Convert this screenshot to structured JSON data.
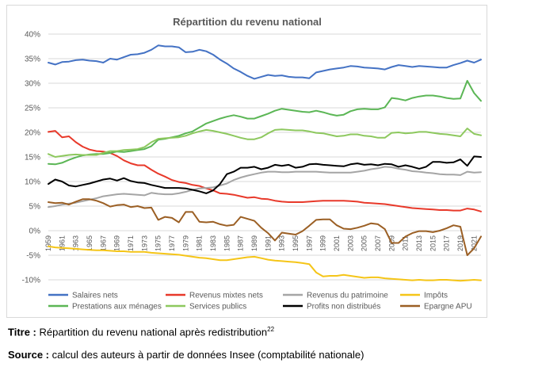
{
  "chart_data": {
    "type": "line",
    "title": "Répartition du revenu national",
    "xlabel": "",
    "ylabel": "",
    "ylim": [
      -10,
      40
    ],
    "y_ticks": [
      -10,
      -5,
      0,
      5,
      10,
      15,
      20,
      25,
      30,
      35,
      40
    ],
    "y_tick_labels": [
      "-10%",
      "-5%",
      "0%",
      "5%",
      "10%",
      "15%",
      "20%",
      "25%",
      "30%",
      "35%",
      "40%"
    ],
    "x": [
      1959,
      1960,
      1961,
      1962,
      1963,
      1964,
      1965,
      1966,
      1967,
      1968,
      1969,
      1970,
      1971,
      1972,
      1973,
      1974,
      1975,
      1976,
      1977,
      1978,
      1979,
      1980,
      1981,
      1982,
      1983,
      1984,
      1985,
      1986,
      1987,
      1988,
      1989,
      1990,
      1991,
      1992,
      1993,
      1994,
      1995,
      1996,
      1997,
      1998,
      1999,
      2000,
      2001,
      2002,
      2003,
      2004,
      2005,
      2006,
      2007,
      2008,
      2009,
      2010,
      2011,
      2012,
      2013,
      2014,
      2015,
      2016,
      2017,
      2018,
      2019,
      2020,
      2021,
      2022
    ],
    "x_tick_labels": [
      "1959",
      "1961",
      "1963",
      "1965",
      "1967",
      "1969",
      "1971",
      "1973",
      "1975",
      "1977",
      "1979",
      "1981",
      "1983",
      "1985",
      "1987",
      "1989",
      "1991",
      "1993",
      "1995",
      "1997",
      "1999",
      "2001",
      "2003",
      "2005",
      "2007",
      "2009",
      "2011",
      "2013",
      "2015",
      "2017",
      "2019",
      "2021"
    ],
    "legend_position": "bottom",
    "series": [
      {
        "name": "Salaires nets",
        "color": "#4472C4",
        "values": [
          34.2,
          33.8,
          34.3,
          34.4,
          34.7,
          34.8,
          34.6,
          34.5,
          34.2,
          35.0,
          34.8,
          35.3,
          35.8,
          35.9,
          36.2,
          36.8,
          37.7,
          37.5,
          37.5,
          37.3,
          36.3,
          36.4,
          36.8,
          36.5,
          35.8,
          34.8,
          34.0,
          33.0,
          32.3,
          31.5,
          30.9,
          31.3,
          31.7,
          31.5,
          31.6,
          31.3,
          31.2,
          31.2,
          31.0,
          32.2,
          32.5,
          32.8,
          33.0,
          33.2,
          33.5,
          33.4,
          33.2,
          33.1,
          33.0,
          32.8,
          33.3,
          33.7,
          33.5,
          33.3,
          33.5,
          33.4,
          33.3,
          33.2,
          33.2,
          33.7,
          34.1,
          34.6,
          34.2,
          34.8
        ]
      },
      {
        "name": "Revenus mixtes nets",
        "color": "#E8392A",
        "values": [
          20.1,
          20.3,
          19.0,
          19.2,
          18.0,
          17.1,
          16.5,
          16.2,
          16.1,
          15.8,
          15.2,
          14.3,
          13.7,
          13.3,
          13.3,
          12.4,
          11.6,
          11.0,
          10.3,
          9.9,
          9.7,
          9.3,
          9.1,
          8.6,
          8.2,
          7.6,
          7.5,
          7.3,
          7.0,
          6.7,
          6.8,
          6.5,
          6.4,
          6.1,
          5.9,
          5.8,
          5.8,
          5.8,
          5.9,
          6.0,
          6.1,
          6.1,
          6.1,
          6.1,
          6.0,
          5.9,
          5.7,
          5.6,
          5.5,
          5.4,
          5.2,
          5.0,
          4.8,
          4.6,
          4.5,
          4.4,
          4.3,
          4.2,
          4.2,
          4.1,
          4.1,
          4.5,
          4.3,
          3.9
        ]
      },
      {
        "name": "Revenus du patrimoine",
        "color": "#A5A5A5",
        "values": [
          4.8,
          5.0,
          5.3,
          5.5,
          5.7,
          6.0,
          6.3,
          6.6,
          7.0,
          7.2,
          7.4,
          7.5,
          7.4,
          7.3,
          7.2,
          7.7,
          7.5,
          7.4,
          7.4,
          7.6,
          7.9,
          8.3,
          8.6,
          8.7,
          8.8,
          9.2,
          9.6,
          10.3,
          10.8,
          11.2,
          11.5,
          11.8,
          12.0,
          12.0,
          11.9,
          11.9,
          12.0,
          12.0,
          12.0,
          12.0,
          11.9,
          11.8,
          11.8,
          11.8,
          11.8,
          12.0,
          12.2,
          12.5,
          12.7,
          13.0,
          12.9,
          12.6,
          12.4,
          12.1,
          12.0,
          11.8,
          11.7,
          11.5,
          11.4,
          11.4,
          11.3,
          12.0,
          11.8,
          11.9
        ]
      },
      {
        "name": "Impôts",
        "color": "#F5C518",
        "values": [
          -3.2,
          -3.4,
          -3.5,
          -3.6,
          -3.7,
          -3.8,
          -3.9,
          -4.0,
          -4.0,
          -4.1,
          -4.2,
          -4.2,
          -4.3,
          -4.3,
          -4.3,
          -4.5,
          -4.6,
          -4.7,
          -4.8,
          -4.9,
          -5.1,
          -5.3,
          -5.5,
          -5.6,
          -5.8,
          -6.0,
          -6.0,
          -5.8,
          -5.6,
          -5.4,
          -5.3,
          -5.6,
          -5.9,
          -6.1,
          -6.2,
          -6.3,
          -6.4,
          -6.6,
          -6.8,
          -8.5,
          -9.3,
          -9.2,
          -9.2,
          -9.0,
          -9.2,
          -9.4,
          -9.6,
          -9.5,
          -9.5,
          -9.7,
          -9.8,
          -9.9,
          -10.0,
          -10.1,
          -10.0,
          -10.1,
          -10.1,
          -10.0,
          -10.0,
          -10.1,
          -10.2,
          -10.1,
          -10.0,
          -10.1
        ]
      },
      {
        "name": "Prestations aux ménages",
        "color": "#5BB655",
        "values": [
          13.6,
          13.5,
          13.8,
          14.4,
          14.9,
          15.3,
          15.5,
          15.6,
          15.6,
          15.8,
          16.1,
          16.0,
          16.2,
          16.4,
          16.6,
          17.2,
          18.5,
          18.7,
          19.0,
          19.3,
          19.8,
          20.2,
          21.0,
          21.8,
          22.3,
          22.8,
          23.2,
          23.5,
          23.2,
          22.8,
          22.8,
          23.3,
          23.8,
          24.4,
          24.8,
          24.6,
          24.4,
          24.2,
          24.1,
          24.4,
          24.1,
          23.7,
          23.4,
          23.6,
          24.3,
          24.7,
          24.8,
          24.7,
          24.7,
          25.1,
          27.0,
          26.8,
          26.5,
          27.0,
          27.3,
          27.5,
          27.5,
          27.3,
          27.0,
          26.8,
          26.9,
          30.5,
          28.0,
          26.4
        ]
      },
      {
        "name": "Services publics",
        "color": "#8DC85E",
        "values": [
          15.6,
          15.0,
          15.2,
          15.4,
          15.5,
          15.4,
          15.4,
          15.4,
          15.8,
          16.2,
          16.2,
          16.4,
          16.5,
          16.6,
          17.0,
          18.0,
          18.7,
          18.8,
          18.9,
          19.0,
          19.3,
          19.8,
          20.2,
          20.5,
          20.3,
          20.0,
          19.7,
          19.3,
          18.9,
          18.6,
          18.6,
          19.0,
          19.8,
          20.5,
          20.6,
          20.5,
          20.4,
          20.4,
          20.2,
          19.9,
          19.8,
          19.5,
          19.2,
          19.3,
          19.6,
          19.6,
          19.3,
          19.2,
          18.9,
          18.9,
          19.9,
          20.0,
          19.8,
          19.9,
          20.1,
          20.1,
          19.9,
          19.7,
          19.6,
          19.4,
          19.2,
          20.8,
          19.7,
          19.4
        ]
      },
      {
        "name": "Profits non distribués",
        "color": "#000000",
        "values": [
          9.5,
          10.4,
          10.0,
          9.2,
          9.0,
          9.3,
          9.6,
          10.0,
          10.4,
          10.6,
          10.2,
          10.7,
          10.1,
          9.8,
          9.7,
          9.3,
          9.0,
          8.7,
          8.7,
          8.7,
          8.6,
          8.3,
          8.0,
          7.6,
          8.2,
          9.5,
          11.5,
          12.0,
          12.8,
          12.8,
          13.0,
          12.5,
          12.8,
          13.4,
          13.2,
          13.4,
          12.8,
          13.0,
          13.5,
          13.6,
          13.4,
          13.3,
          13.2,
          13.1,
          13.5,
          13.7,
          13.4,
          13.5,
          13.3,
          13.6,
          13.5,
          13.0,
          13.3,
          13.0,
          12.6,
          13.0,
          14.0,
          14.0,
          13.8,
          13.9,
          14.5,
          13.2,
          15.1,
          15.0
        ]
      },
      {
        "name": "Epargne APU",
        "color": "#9B5F24",
        "values": [
          5.8,
          5.6,
          5.7,
          5.3,
          5.9,
          6.4,
          6.4,
          6.1,
          5.6,
          4.9,
          5.2,
          5.3,
          4.8,
          5.0,
          4.6,
          4.7,
          2.2,
          2.8,
          2.6,
          1.7,
          3.8,
          3.8,
          1.8,
          1.7,
          1.8,
          1.3,
          1.0,
          1.2,
          2.8,
          2.4,
          2.0,
          0.6,
          -0.5,
          -2.0,
          -0.4,
          -0.6,
          -0.8,
          -0.1,
          1.0,
          2.2,
          2.3,
          2.3,
          1.1,
          0.4,
          0.3,
          0.6,
          1.0,
          1.5,
          1.3,
          0.3,
          -2.5,
          -2.5,
          -1.2,
          -0.5,
          -0.1,
          -0.1,
          -0.3,
          0.0,
          0.5,
          1.1,
          0.8,
          -5.0,
          -3.6,
          -1.2
        ]
      }
    ]
  },
  "caption": {
    "title_label": "Titre :",
    "title_text": "Répartition du revenu national après redistribution",
    "title_note": "22",
    "source_label": "Source :",
    "source_text": "calcul des auteurs à partir de données Insee (comptabilité nationale)"
  }
}
